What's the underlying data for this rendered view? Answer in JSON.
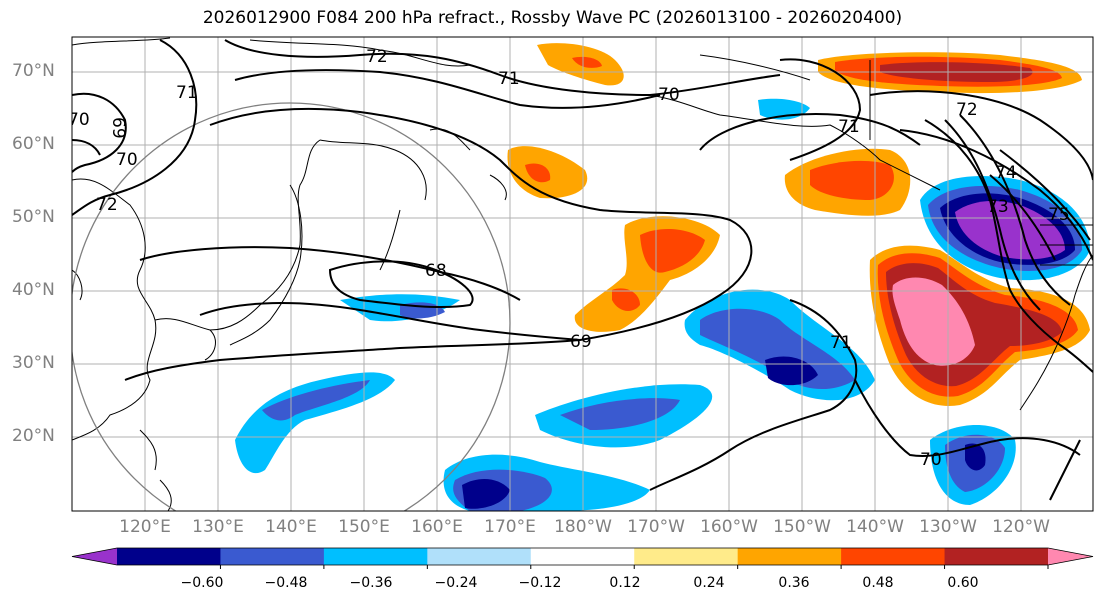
{
  "title": "2026012900 F084 200 hPa refract., Rossby Wave PC (2026013100 - 2026020400)",
  "lat_labels": [
    "70°N",
    "60°N",
    "50°N",
    "40°N",
    "30°N",
    "20°N"
  ],
  "lon_labels": [
    "120°E",
    "130°E",
    "140°E",
    "150°E",
    "160°E",
    "170°E",
    "180°W",
    "170°W",
    "160°W",
    "150°W",
    "140°W",
    "130°W",
    "120°W"
  ],
  "contour_labels": [
    "72",
    "71",
    "70",
    "69",
    "70",
    "72",
    "71",
    "70",
    "71",
    "72",
    "74",
    "73",
    "75",
    "68",
    "69",
    "71",
    "70"
  ],
  "colorbar": {
    "ticks": [
      "−0.60",
      "−0.48",
      "−0.36",
      "−0.24",
      "−0.12",
      "0.12",
      "0.24",
      "0.36",
      "0.48",
      "0.60"
    ],
    "colors": [
      "#9932cc",
      "#00008b",
      "#3a5ad0",
      "#00bfff",
      "#b0e0fa",
      "#ffffff",
      "#ffeb8a",
      "#ffa500",
      "#ff4500",
      "#b22222",
      "#ff88b0"
    ]
  }
}
